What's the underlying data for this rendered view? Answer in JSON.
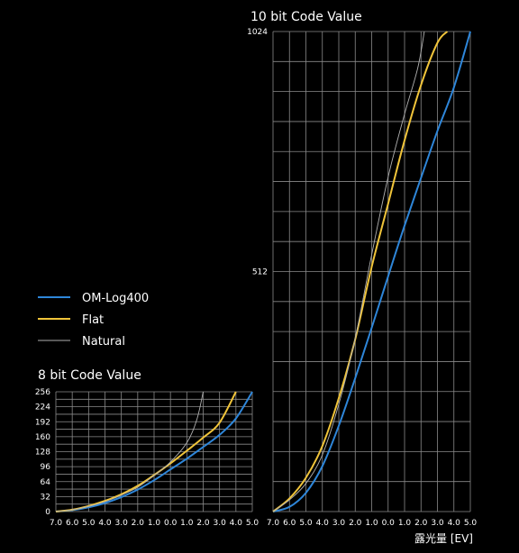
{
  "colors": {
    "om_log400": "#2e86d9",
    "flat": "#f0c43a",
    "natural": "#b0b0b0",
    "grid": "#8a8a8a",
    "background": "#000000"
  },
  "legend": {
    "items": [
      {
        "label": "OM-Log400",
        "color": "#2e86d9"
      },
      {
        "label": "Flat",
        "color": "#f0c43a"
      },
      {
        "label": "Natural",
        "color": "#b0b0b0"
      }
    ],
    "placement": "left"
  },
  "chart_data": [
    {
      "type": "line",
      "title": "10 bit Code Value",
      "xlabel": "露光量 [EV]",
      "ylabel": "",
      "xlim": [
        -7,
        5
      ],
      "ylim": [
        0,
        1024
      ],
      "grid": true,
      "x_ticks": [
        "7.0",
        "6.0",
        "5.0",
        "4.0",
        "3.0",
        "2.0",
        "1.0",
        "0.0",
        "1.0",
        "2.0",
        "3.0",
        "4.0",
        "5.0"
      ],
      "y_ticks": [
        {
          "value": 512,
          "label": "512"
        },
        {
          "value": 1024,
          "label": "1024"
        }
      ],
      "series": [
        {
          "name": "OM-Log400",
          "x": [
            -7,
            -6,
            -5,
            -4,
            -3,
            -2,
            -1,
            0,
            1,
            2,
            3,
            4,
            5
          ],
          "y": [
            0,
            10,
            40,
            97,
            183,
            285,
            392,
            502,
            610,
            712,
            812,
            905,
            1024
          ]
        },
        {
          "name": "Flat",
          "x": [
            -7,
            -6,
            -5,
            -4,
            -3,
            -2,
            -1,
            0,
            1,
            2,
            3,
            3.6
          ],
          "y": [
            0,
            28,
            72,
            140,
            242,
            368,
            522,
            657,
            792,
            910,
            1000,
            1024
          ]
        },
        {
          "name": "Natural",
          "x": [
            -7,
            -6,
            -5,
            -4,
            -3,
            -2,
            -1,
            0,
            1,
            1.8,
            2.2
          ],
          "y": [
            0,
            25,
            60,
            121,
            229,
            370,
            548,
            714,
            848,
            946,
            1024
          ]
        }
      ]
    },
    {
      "type": "line",
      "title": "8 bit Code Value",
      "xlabel": "",
      "ylabel": "",
      "xlim": [
        -7,
        5
      ],
      "ylim": [
        0,
        256
      ],
      "grid": true,
      "x_ticks": [
        "7.0",
        "6.0",
        "5.0",
        "4.0",
        "3.0",
        "2.0",
        "1.0",
        "0.0",
        "1.0",
        "2.0",
        "3.0",
        "4.0",
        "5.0"
      ],
      "y_ticks": [
        {
          "value": 0,
          "label": "0"
        },
        {
          "value": 32,
          "label": "32"
        },
        {
          "value": 64,
          "label": "64"
        },
        {
          "value": 96,
          "label": "96"
        },
        {
          "value": 128,
          "label": "128"
        },
        {
          "value": 160,
          "label": "160"
        },
        {
          "value": 192,
          "label": "192"
        },
        {
          "value": 224,
          "label": "224"
        },
        {
          "value": 256,
          "label": "256"
        }
      ],
      "series": [
        {
          "name": "OM-Log400",
          "x": [
            -7,
            -6,
            -5,
            -4,
            -3,
            -2,
            -1,
            0,
            1,
            2,
            3,
            4,
            5
          ],
          "y": [
            0,
            3,
            9,
            18,
            31,
            47,
            67,
            90,
            113,
            138,
            164,
            199,
            256
          ]
        },
        {
          "name": "Flat",
          "x": [
            -7,
            -6,
            -5,
            -4,
            -3,
            -2,
            -1,
            0,
            1,
            2,
            3,
            4
          ],
          "y": [
            0,
            4,
            12,
            23,
            37,
            55,
            78,
            103,
            130,
            158,
            190,
            256
          ]
        },
        {
          "name": "Natural",
          "x": [
            -7,
            -6,
            -5,
            -4,
            -3,
            -2,
            -1,
            0,
            1,
            1.6,
            2
          ],
          "y": [
            0,
            4,
            11,
            21,
            35,
            52,
            77,
            106,
            147,
            195,
            256
          ]
        }
      ]
    }
  ]
}
